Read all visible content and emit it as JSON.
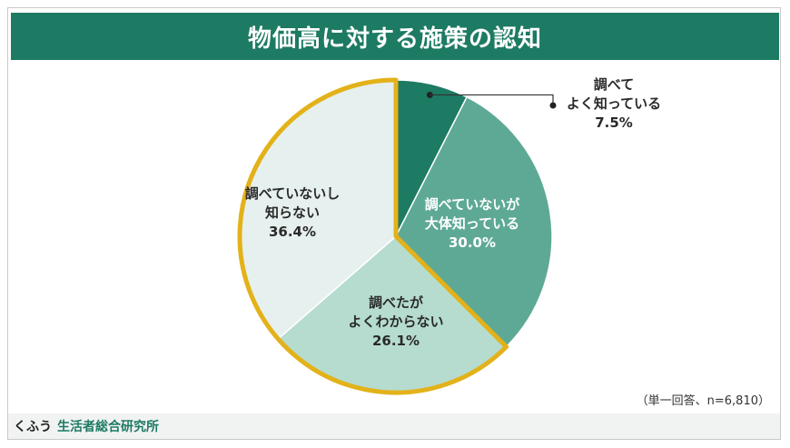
{
  "chart_data": {
    "type": "pie",
    "title": "物価高に対する施策の認知",
    "slices": [
      {
        "label_lines": [
          "調べて",
          "よく知っている"
        ],
        "value": 7.5,
        "value_text": "7.5%",
        "color": "#1d7a63"
      },
      {
        "label_lines": [
          "調べていないが",
          "大体知っている"
        ],
        "value": 30.0,
        "value_text": "30.0%",
        "color": "#5ea996"
      },
      {
        "label_lines": [
          "調べたが",
          "よくわからない"
        ],
        "value": 26.1,
        "value_text": "26.1%",
        "color": "#b5dccf"
      },
      {
        "label_lines": [
          "調べていないし",
          "知らない"
        ],
        "value": 36.4,
        "value_text": "36.4%",
        "color": "#e6f0ee"
      }
    ],
    "highlight": {
      "slices": [
        2,
        3
      ],
      "color": "#e3b21a"
    },
    "note": "（単一回答、n=6,810）"
  },
  "footer": {
    "brand": "くふう",
    "lab": "生活者総合研究所"
  }
}
